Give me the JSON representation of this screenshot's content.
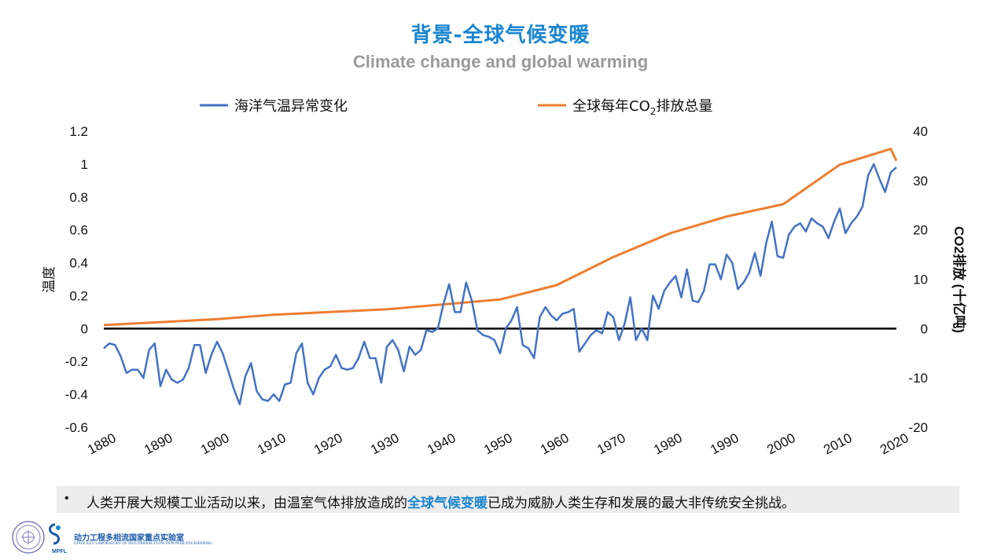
{
  "slide": {
    "title_zh": "背景-全球气候变暖",
    "title_en": "Climate change and global warming",
    "bullet": "•",
    "text_before": "人类开展大规模工业活动以来，由温室气体排放造成的",
    "text_highlight": "全球气候变暖",
    "text_after": "已成为威胁人类生存和发展的最大非传统安全挑战。",
    "lab_name": "动力工程多相流国家重点实验室",
    "lab_sub": "STATE KEY LABORATORY OF MULTIPHASE FLOW IN POWER ENGINEERING",
    "lab_abbr": "MPFL",
    "colors": {
      "accent": "#1a86d0",
      "subtitle": "#9a9a9a",
      "bar_bg": "#ececec"
    }
  },
  "chart_data": {
    "type": "line",
    "xlim": [
      1880,
      2020
    ],
    "x_ticks": [
      1880,
      1890,
      1900,
      1910,
      1920,
      1930,
      1940,
      1950,
      1960,
      1970,
      1980,
      1990,
      2000,
      2010,
      2020
    ],
    "ylabel_left": "温度",
    "ylabel_right": "CO2排放 (十亿吨)",
    "ylim_left": [
      -0.6,
      1.2
    ],
    "yticks_left": [
      "1.2",
      "1",
      "0.8",
      "0.6",
      "0.4",
      "0.2",
      "0",
      "-0.2",
      "-0.4",
      "-0.6"
    ],
    "ylim_right": [
      -20,
      40
    ],
    "yticks_right": [
      "40",
      "30",
      "20",
      "10",
      "0",
      "-10",
      "-20"
    ],
    "legend_position": "top",
    "series": [
      {
        "name": "海洋气温异常变化",
        "axis": "left",
        "color": "#4472c4",
        "x_start": 1880,
        "values": [
          -0.12,
          -0.09,
          -0.1,
          -0.17,
          -0.27,
          -0.25,
          -0.25,
          -0.3,
          -0.13,
          -0.09,
          -0.35,
          -0.25,
          -0.31,
          -0.33,
          -0.31,
          -0.24,
          -0.1,
          -0.1,
          -0.27,
          -0.16,
          -0.08,
          -0.15,
          -0.26,
          -0.37,
          -0.46,
          -0.29,
          -0.21,
          -0.38,
          -0.43,
          -0.44,
          -0.4,
          -0.44,
          -0.34,
          -0.33,
          -0.15,
          -0.09,
          -0.33,
          -0.4,
          -0.3,
          -0.25,
          -0.23,
          -0.16,
          -0.24,
          -0.25,
          -0.24,
          -0.18,
          -0.08,
          -0.18,
          -0.18,
          -0.33,
          -0.11,
          -0.07,
          -0.13,
          -0.26,
          -0.11,
          -0.16,
          -0.13,
          -0.01,
          -0.02,
          0.0,
          0.15,
          0.27,
          0.1,
          0.1,
          0.28,
          0.17,
          -0.01,
          -0.04,
          -0.05,
          -0.07,
          -0.15,
          0.0,
          0.05,
          0.13,
          -0.1,
          -0.12,
          -0.18,
          0.07,
          0.13,
          0.08,
          0.05,
          0.09,
          0.1,
          0.12,
          -0.14,
          -0.09,
          -0.04,
          -0.01,
          -0.03,
          0.1,
          0.07,
          -0.07,
          0.03,
          0.19,
          -0.07,
          0.0,
          -0.07,
          0.2,
          0.12,
          0.23,
          0.28,
          0.32,
          0.19,
          0.36,
          0.17,
          0.16,
          0.23,
          0.39,
          0.39,
          0.3,
          0.45,
          0.4,
          0.24,
          0.28,
          0.34,
          0.46,
          0.32,
          0.52,
          0.65,
          0.44,
          0.43,
          0.57,
          0.62,
          0.64,
          0.59,
          0.67,
          0.64,
          0.62,
          0.55,
          0.65,
          0.73,
          0.58,
          0.64,
          0.68,
          0.74,
          0.93,
          1.0,
          0.91,
          0.83,
          0.95,
          0.98
        ]
      },
      {
        "name": "全球每年CO2排放总量",
        "axis": "right",
        "color": "#ed7d31",
        "x": [
          1880,
          1900,
          1910,
          1930,
          1950,
          1960,
          1970,
          1980,
          1990,
          2000,
          2010,
          2019,
          2020
        ],
        "values": [
          0.7,
          1.9,
          2.8,
          3.9,
          5.9,
          8.8,
          14.5,
          19.3,
          22.7,
          25.2,
          33.2,
          36.4,
          34.0
        ]
      }
    ]
  }
}
